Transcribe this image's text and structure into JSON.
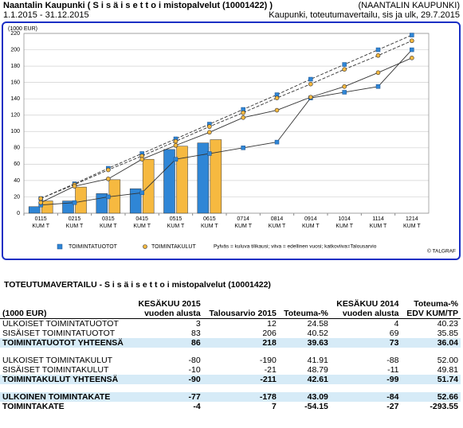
{
  "header": {
    "title": "Naantalin Kaupunki ( S i s ä i s e t  t o i mistopalvelut (10001422) )",
    "org": "(NAANTALIN KAUPUNKI)",
    "period": "1.1.2015 - 31.12.2015",
    "report": "Kaupunki, toteutumavertailu, sis ja ulk, 29.7.2015"
  },
  "chart_data": {
    "type": "bar",
    "y_label": "(1000 EUR)",
    "categories": [
      "0115 KUM T",
      "0215 KUM T",
      "0315 KUM T",
      "0415 KUM T",
      "0515 KUM T",
      "0615 KUM T",
      "0714 KUM T",
      "0814 KUM T",
      "0914 KUM T",
      "1014 KUM T",
      "1114 KUM T",
      "1214 KUM T"
    ],
    "series": [
      {
        "name": "TOIMINTATUOTOT",
        "color": "#2f86d6",
        "values": [
          8,
          15,
          24,
          30,
          78,
          86,
          null,
          null,
          null,
          null,
          null,
          null
        ],
        "previous_year": [
          10,
          13,
          20,
          25,
          66,
          73,
          80,
          87,
          141,
          148,
          155,
          200
        ],
        "budget": [
          18,
          36,
          55,
          73,
          91,
          109,
          127,
          145,
          164,
          182,
          200,
          218
        ]
      },
      {
        "name": "TOIMINTAKULUT",
        "color": "#f6b940",
        "values": [
          15,
          32,
          41,
          66,
          82,
          90,
          null,
          null,
          null,
          null,
          null,
          null
        ],
        "previous_year": [
          13,
          33,
          42,
          66,
          83,
          99,
          117,
          126,
          142,
          155,
          172,
          190
        ],
        "budget": [
          18,
          35,
          53,
          70,
          88,
          106,
          123,
          141,
          158,
          176,
          193,
          211
        ]
      }
    ],
    "ylim": [
      0,
      220
    ],
    "yticks": [
      0,
      20,
      40,
      60,
      80,
      100,
      120,
      140,
      160,
      180,
      200,
      220
    ],
    "grid": true,
    "note": "Pylväs = kuluva tilikausi; viiva = edellinen vuosi; katkoviiva=Talousarvio",
    "credit": "© TALGRAF"
  },
  "table": {
    "title": "TOTEUTUMAVERTAILU - S i s ä i s e t  t o i mistopalvelut (10001422)",
    "header": [
      [
        "(1000 EUR)"
      ],
      [
        "KESÄKUU 2015",
        "vuoden alusta"
      ],
      [
        "Talousarvio 2015"
      ],
      [
        "Toteuma-%"
      ],
      [
        "KESÄKUU 2014",
        "vuoden alusta"
      ],
      [
        "Toteuma-%",
        "EDV KUM/TP"
      ]
    ],
    "groups": [
      [
        {
          "cells": [
            "ULKOISET TOIMINTATUOTOT",
            "3",
            "12",
            "24.58",
            "4",
            "40.23"
          ]
        },
        {
          "cells": [
            "SISÄISET TOIMINTATUOTOT",
            "83",
            "206",
            "40.52",
            "69",
            "35.85"
          ]
        },
        {
          "cells": [
            "TOIMINTATUOTOT YHTEENSÄ",
            "86",
            "218",
            "39.63",
            "73",
            "36.04"
          ],
          "highlight": true
        }
      ],
      [
        {
          "cells": [
            "ULKOISET TOIMINTAKULUT",
            "-80",
            "-190",
            "41.91",
            "-88",
            "52.00"
          ]
        },
        {
          "cells": [
            "SISÄISET TOIMINTAKULUT",
            "-10",
            "-21",
            "48.79",
            "-11",
            "49.81"
          ]
        },
        {
          "cells": [
            "TOIMINTAKULUT YHTEENSÄ",
            "-90",
            "-211",
            "42.61",
            "-99",
            "51.74"
          ],
          "highlight": true
        }
      ],
      [
        {
          "cells": [
            "ULKOINEN TOIMINTAKATE",
            "-77",
            "-178",
            "43.09",
            "-84",
            "52.66"
          ],
          "highlight": true
        },
        {
          "cells": [
            "TOIMINTAKATE",
            "-4",
            "7",
            "-54.15",
            "-27",
            "-293.55"
          ],
          "bold": true
        }
      ]
    ]
  }
}
